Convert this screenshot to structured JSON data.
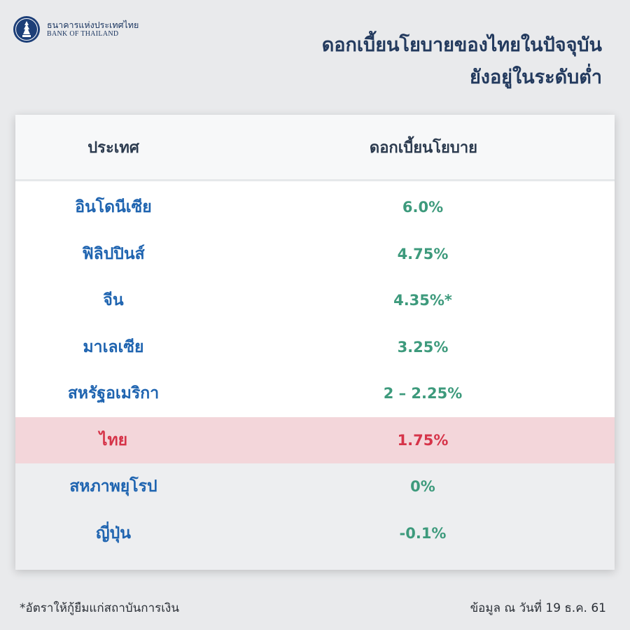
{
  "logo": {
    "name_th": "ธนาคารแห่งประเทศไทย",
    "name_en": "BANK OF THAILAND"
  },
  "headline": {
    "line1": "ดอกเบี้ยนโยบายของไทยในปัจจุบัน",
    "line2": "ยังอยู่ในระดับต่ำ"
  },
  "table": {
    "header_country": "ประเทศ",
    "header_rate": "ดอกเบี้ยนโยบาย",
    "rows": [
      {
        "country": "อินโดนีเซีย",
        "rate": "6.0%"
      },
      {
        "country": "ฟิลิปปินส์",
        "rate": "4.75%"
      },
      {
        "country": "จีน",
        "rate": "4.35%*"
      },
      {
        "country": "มาเลเซีย",
        "rate": "3.25%"
      },
      {
        "country": "สหรัฐอเมริกา",
        "rate": "2 – 2.25%"
      },
      {
        "country": "ไทย",
        "rate": "1.75%"
      },
      {
        "country": "สหภาพยุโรป",
        "rate": "0%"
      },
      {
        "country": "ญี่ปุ่น",
        "rate": "-0.1%"
      }
    ]
  },
  "footnote": "*อัตราให้กู้ยืมแก่สถาบันการเงิน",
  "source": "ข้อมูล ณ วันที่ 19 ธ.ค. 61",
  "colors": {
    "headline": "#233a5e",
    "country_text": "#1f64b0",
    "rate_text": "#3d9a7c",
    "highlight_bg": "#f3d6da",
    "highlight_text": "#d63449"
  }
}
